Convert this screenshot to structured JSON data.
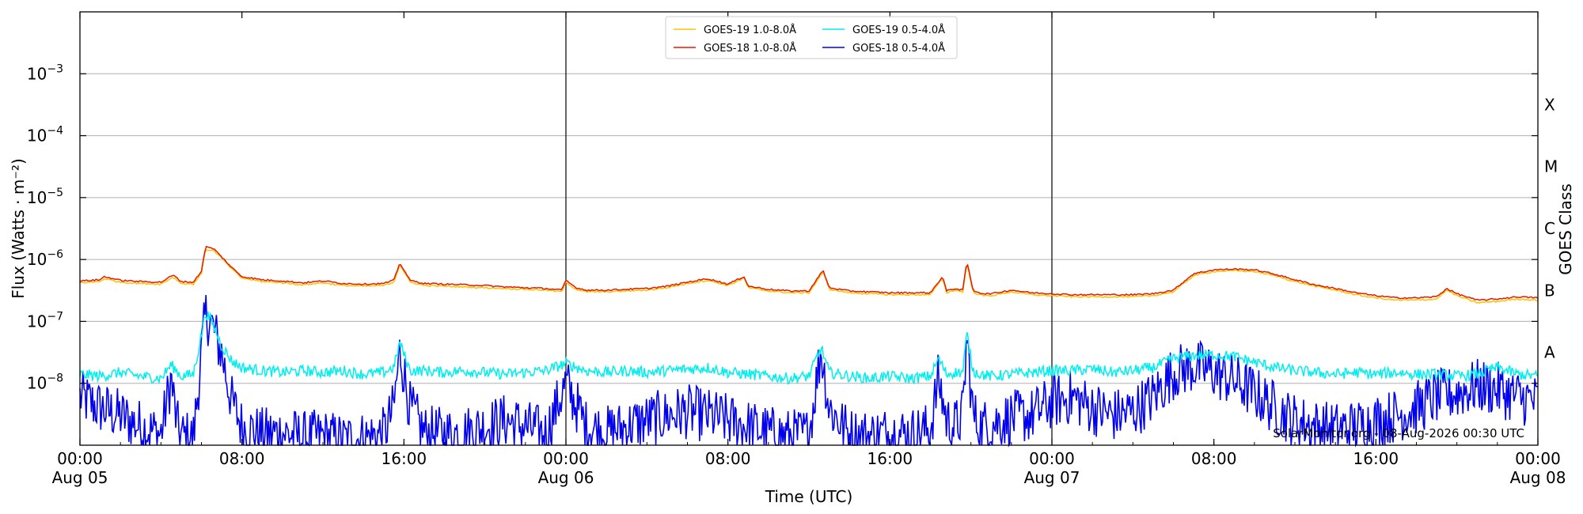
{
  "chart_data": {
    "type": "line",
    "xlabel": "Time (UTC)",
    "ylabel": "Flux (Watts · m⁻²)",
    "right_ylabel": "GOES Class",
    "credit": "SolarMonitor.org - 08-Aug-2026 00:30 UTC",
    "x_range": [
      "2026-08-05T00:00",
      "2026-08-08T00:00"
    ],
    "y_scale": "log",
    "ylim": [
      1e-09,
      0.01
    ],
    "grid": "horizontal",
    "legend_position": "top-center",
    "x_ticks": [
      {
        "line1": "00:00",
        "line2": "Aug 05",
        "hour": 0
      },
      {
        "line1": "08:00",
        "line2": "",
        "hour": 8
      },
      {
        "line1": "16:00",
        "line2": "",
        "hour": 16
      },
      {
        "line1": "00:00",
        "line2": "Aug 06",
        "hour": 24
      },
      {
        "line1": "08:00",
        "line2": "",
        "hour": 32
      },
      {
        "line1": "16:00",
        "line2": "",
        "hour": 40
      },
      {
        "line1": "00:00",
        "line2": "Aug 07",
        "hour": 48
      },
      {
        "line1": "08:00",
        "line2": "",
        "hour": 56
      },
      {
        "line1": "16:00",
        "line2": "",
        "hour": 64
      },
      {
        "line1": "00:00",
        "line2": "Aug 08",
        "hour": 72
      }
    ],
    "y_ticks": [
      {
        "base": "10",
        "exp": "−3",
        "value": 0.001
      },
      {
        "base": "10",
        "exp": "−4",
        "value": 0.0001
      },
      {
        "base": "10",
        "exp": "−5",
        "value": 1e-05
      },
      {
        "base": "10",
        "exp": "−6",
        "value": 1e-06
      },
      {
        "base": "10",
        "exp": "−7",
        "value": 1e-07
      },
      {
        "base": "10",
        "exp": "−8",
        "value": 1e-08
      }
    ],
    "class_labels": [
      {
        "label": "X",
        "value": 0.000316
      },
      {
        "label": "M",
        "value": 3.16e-05
      },
      {
        "label": "C",
        "value": 3.16e-06
      },
      {
        "label": "B",
        "value": 3.16e-07
      },
      {
        "label": "A",
        "value": 3.16e-08
      }
    ],
    "day_boundaries": [
      24,
      48
    ],
    "series": [
      {
        "name": "GOES-19 1.0-8.0Å",
        "color": "#ffc200",
        "hours": [
          0,
          1,
          1.2,
          2,
          3,
          4,
          4.6,
          5,
          5.6,
          6,
          6.2,
          6.6,
          7,
          7.5,
          8,
          9,
          10,
          11,
          12,
          13,
          14,
          15,
          15.5,
          15.8,
          16.3,
          17,
          18,
          19,
          20,
          21,
          22,
          23,
          23.8,
          24,
          24.5,
          25,
          26,
          27,
          28,
          29,
          30,
          31,
          32,
          32.8,
          33,
          34,
          35,
          36,
          36.7,
          37,
          38,
          39,
          40,
          41,
          42,
          42.6,
          42.8,
          43.2,
          43.6,
          43.8,
          44.1,
          44.3,
          44.6,
          45,
          46,
          47,
          48,
          49,
          50,
          51,
          52,
          53,
          54,
          55,
          56,
          57,
          58,
          59,
          60,
          61,
          62,
          63,
          64,
          65,
          66,
          67,
          67.5,
          68,
          69,
          70,
          71,
          72
        ],
        "values": [
          4.2e-07,
          4.4e-07,
          4.9e-07,
          4.3e-07,
          4.1e-07,
          4e-07,
          5.2e-07,
          4.1e-07,
          4e-07,
          6e-07,
          1.45e-06,
          1.4e-06,
          1.05e-06,
          7e-07,
          5e-07,
          4.4e-07,
          4.2e-07,
          3.9e-07,
          4.2e-07,
          3.8e-07,
          3.7e-07,
          3.8e-07,
          4.3e-07,
          8.3e-07,
          4.3e-07,
          3.8e-07,
          3.7e-07,
          3.6e-07,
          3.5e-07,
          3.4e-07,
          3.3e-07,
          3.2e-07,
          3e-07,
          4.3e-07,
          3.3e-07,
          3e-07,
          3e-07,
          3.1e-07,
          3.2e-07,
          3.5e-07,
          4.1e-07,
          4.6e-07,
          3.8e-07,
          5e-07,
          3.5e-07,
          3.1e-07,
          2.9e-07,
          2.9e-07,
          6.3e-07,
          3.3e-07,
          2.9e-07,
          2.8e-07,
          2.7e-07,
          2.7e-07,
          2.7e-07,
          5e-07,
          2.9e-07,
          3.2e-07,
          3e-07,
          8.8e-07,
          3e-07,
          2.8e-07,
          2.6e-07,
          2.6e-07,
          3e-07,
          2.7e-07,
          2.6e-07,
          2.5e-07,
          2.5e-07,
          2.5e-07,
          2.5e-07,
          2.6e-07,
          3e-07,
          5.5e-07,
          6.4e-07,
          6.6e-07,
          6.4e-07,
          5.5e-07,
          4.4e-07,
          3.7e-07,
          3.2e-07,
          2.7e-07,
          2.4e-07,
          2.2e-07,
          2.2e-07,
          2.3e-07,
          3.2e-07,
          2.6e-07,
          2e-07,
          2.1e-07,
          2.3e-07,
          2.2e-07
        ]
      },
      {
        "name": "GOES-18 1.0-8.0Å",
        "color": "#e31b00",
        "hours": [
          0,
          1,
          1.2,
          2,
          3,
          4,
          4.6,
          5,
          5.6,
          6,
          6.2,
          6.6,
          7,
          7.5,
          8,
          9,
          10,
          11,
          12,
          13,
          14,
          15,
          15.5,
          15.8,
          16.3,
          17,
          18,
          19,
          20,
          21,
          22,
          23,
          23.8,
          24,
          24.5,
          25,
          26,
          27,
          28,
          29,
          30,
          31,
          32,
          32.8,
          33,
          34,
          35,
          36,
          36.7,
          37,
          38,
          39,
          40,
          41,
          42,
          42.6,
          42.8,
          43.2,
          43.6,
          43.8,
          44.1,
          44.3,
          44.6,
          45,
          46,
          47,
          48,
          49,
          50,
          51,
          52,
          53,
          54,
          55,
          56,
          57,
          58,
          59,
          60,
          61,
          62,
          63,
          64,
          65,
          66,
          67,
          67.5,
          68,
          69,
          70,
          71,
          72
        ],
        "values": [
          4.5e-07,
          4.7e-07,
          5.3e-07,
          4.6e-07,
          4.4e-07,
          4.3e-07,
          5.6e-07,
          4.4e-07,
          4.3e-07,
          6.5e-07,
          1.6e-06,
          1.5e-06,
          1.1e-06,
          7.4e-07,
          5.3e-07,
          4.7e-07,
          4.5e-07,
          4.2e-07,
          4.5e-07,
          4.1e-07,
          4e-07,
          4.1e-07,
          4.6e-07,
          8.8e-07,
          4.6e-07,
          4.1e-07,
          4e-07,
          3.9e-07,
          3.8e-07,
          3.6e-07,
          3.5e-07,
          3.4e-07,
          3.2e-07,
          4.6e-07,
          3.5e-07,
          3.2e-07,
          3.2e-07,
          3.3e-07,
          3.4e-07,
          3.7e-07,
          4.3e-07,
          4.9e-07,
          4e-07,
          5.3e-07,
          3.7e-07,
          3.3e-07,
          3.1e-07,
          3.1e-07,
          6.7e-07,
          3.5e-07,
          3.1e-07,
          3e-07,
          2.9e-07,
          2.9e-07,
          2.9e-07,
          5.3e-07,
          3.1e-07,
          3.4e-07,
          3.2e-07,
          9.5e-07,
          3.2e-07,
          3e-07,
          2.8e-07,
          2.8e-07,
          3.2e-07,
          2.9e-07,
          2.8e-07,
          2.7e-07,
          2.7e-07,
          2.7e-07,
          2.7e-07,
          2.8e-07,
          3.2e-07,
          5.9e-07,
          6.8e-07,
          7e-07,
          6.8e-07,
          5.8e-07,
          4.7e-07,
          3.9e-07,
          3.4e-07,
          2.9e-07,
          2.6e-07,
          2.4e-07,
          2.4e-07,
          2.5e-07,
          3.4e-07,
          2.8e-07,
          2.2e-07,
          2.3e-07,
          2.5e-07,
          2.4e-07
        ]
      },
      {
        "name": "GOES-19 0.5-4.0Å",
        "color": "#00eeee",
        "hours": [
          0,
          1,
          2,
          3,
          4,
          4.5,
          5,
          5.6,
          6,
          6.2,
          6.5,
          7,
          7.5,
          8,
          9,
          10,
          11,
          12,
          13,
          14,
          15,
          15.5,
          15.8,
          16.3,
          17,
          18,
          19,
          20,
          21,
          22,
          23,
          24,
          25,
          26,
          27,
          28,
          29,
          30,
          31,
          32,
          33,
          34,
          35,
          36,
          36.6,
          37,
          38,
          39,
          40,
          41,
          42,
          42.4,
          42.8,
          43.2,
          43.6,
          43.8,
          44.1,
          44.5,
          45,
          46,
          47,
          48,
          49,
          50,
          51,
          52,
          53,
          54,
          55,
          56,
          57,
          58,
          59,
          60,
          61,
          62,
          63,
          64,
          65,
          66,
          67,
          68,
          69,
          70,
          71,
          72
        ],
        "values": [
          1.4e-08,
          1.3e-08,
          1.5e-08,
          1.3e-08,
          1.2e-08,
          2e-08,
          1.3e-08,
          1.4e-08,
          6e-08,
          1.4e-07,
          1e-07,
          4e-08,
          2.3e-08,
          1.8e-08,
          1.6e-08,
          1.5e-08,
          1.6e-08,
          1.5e-08,
          1.6e-08,
          1.4e-08,
          1.5e-08,
          1.8e-08,
          4.5e-08,
          1.6e-08,
          1.6e-08,
          1.5e-08,
          1.6e-08,
          1.5e-08,
          1.4e-08,
          1.5e-08,
          1.6e-08,
          2.1e-08,
          1.6e-08,
          1.5e-08,
          1.6e-08,
          1.5e-08,
          1.6e-08,
          1.7e-08,
          1.8e-08,
          1.5e-08,
          1.4e-08,
          1.3e-08,
          1.2e-08,
          1.3e-08,
          3.8e-08,
          1.5e-08,
          1.3e-08,
          1.2e-08,
          1.3e-08,
          1.2e-08,
          1.3e-08,
          2.5e-08,
          1.4e-08,
          1.5e-08,
          1.5e-08,
          6.5e-08,
          1.6e-08,
          1.4e-08,
          1.3e-08,
          1.4e-08,
          1.5e-08,
          1.6e-08,
          1.6e-08,
          1.7e-08,
          1.5e-08,
          1.6e-08,
          1.8e-08,
          2.5e-08,
          2.8e-08,
          2.9e-08,
          2.7e-08,
          2.2e-08,
          1.8e-08,
          1.6e-08,
          1.5e-08,
          1.4e-08,
          1.5e-08,
          1.4e-08,
          1.5e-08,
          1.4e-08,
          1.4e-08,
          1.3e-08,
          1.4e-08,
          1.8e-08,
          1.4e-08,
          1.3e-08
        ]
      },
      {
        "name": "GOES-18 0.5-4.0Å",
        "color": "#0000ee",
        "hours": [
          0,
          1,
          2,
          3,
          4,
          4.5,
          4.8,
          5,
          5.6,
          6,
          6.2,
          6.5,
          7,
          7.5,
          8,
          9,
          10,
          11,
          12,
          13,
          14,
          15,
          15.5,
          15.8,
          16.3,
          17,
          18,
          19,
          20,
          21,
          22,
          23,
          24,
          25,
          26,
          27,
          28,
          29,
          30,
          31,
          32,
          33,
          34,
          35,
          36,
          36.6,
          37,
          38,
          39,
          40,
          41,
          42,
          42.4,
          42.8,
          43.2,
          43.6,
          43.8,
          44.1,
          44.5,
          45,
          46,
          47,
          48,
          49,
          50,
          51,
          52,
          53,
          54,
          55,
          56,
          57,
          58,
          59,
          60,
          61,
          62,
          63,
          64,
          65,
          66,
          67,
          68,
          69,
          70,
          71,
          72
        ],
        "values": [
          6e-09,
          4e-09,
          3e-09,
          2e-09,
          1.5e-09,
          1.2e-08,
          2e-09,
          1.4e-09,
          1.3e-09,
          3e-08,
          1.3e-07,
          9e-08,
          3e-08,
          5e-09,
          2e-09,
          1.5e-09,
          1.6e-09,
          1.3e-09,
          1.4e-09,
          1.2e-09,
          1.3e-09,
          1.5e-09,
          4e-09,
          3.5e-08,
          4e-09,
          1.6e-09,
          1.5e-09,
          1.6e-09,
          2e-09,
          2.5e-09,
          2e-09,
          1.5e-09,
          1e-08,
          2e-09,
          1.6e-09,
          2e-09,
          2.5e-09,
          3e-09,
          3.5e-09,
          3e-09,
          2.5e-09,
          2e-09,
          1.6e-09,
          1.4e-09,
          1.5e-09,
          3.5e-08,
          4e-09,
          1.5e-09,
          1.4e-09,
          1.6e-09,
          1.5e-09,
          1.8e-09,
          1.2e-08,
          2.5e-09,
          2e-09,
          3e-09,
          6e-08,
          3e-09,
          2e-09,
          2.2e-09,
          2.8e-09,
          3e-09,
          5e-09,
          6e-09,
          4e-09,
          3e-09,
          3.5e-09,
          6e-09,
          1.5e-08,
          1.9e-08,
          1.5e-08,
          1.1e-08,
          7e-09,
          4e-09,
          2.5e-09,
          2e-09,
          1.8e-09,
          2e-09,
          2.5e-09,
          3e-09,
          4e-09,
          6e-09,
          7e-09,
          9e-09,
          8e-09,
          6e-09,
          5e-09
        ]
      }
    ]
  }
}
